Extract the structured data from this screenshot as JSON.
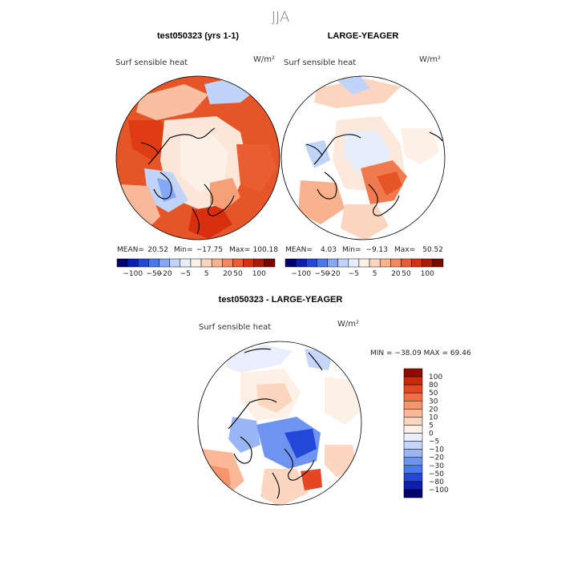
{
  "season": "JJA",
  "colors": {
    "levels_panel": [
      "#00006e",
      "#0b1fb5",
      "#2447d8",
      "#4a78ee",
      "#86a8f4",
      "#c0d3f9",
      "#e6eefc",
      "#fdf0e6",
      "#fcd5bf",
      "#fab18e",
      "#f78760",
      "#ee5a33",
      "#d8300f",
      "#ae1a05",
      "#7a0800"
    ],
    "levels_diff": [
      "#00006e",
      "#0b1fb5",
      "#2447d8",
      "#4a78ee",
      "#6f93f0",
      "#99b5f5",
      "#c6d6fa",
      "#e9effd",
      "#fdf0e6",
      "#fcd6bf",
      "#fbb896",
      "#f8946c",
      "#f26e46",
      "#e44722",
      "#c92a0a",
      "#8e0c00"
    ],
    "land_outline": "#000000",
    "background": "#ffffff"
  },
  "chart_data": [
    {
      "type": "heatmap",
      "name": "model",
      "title": "test050323 (yrs 1-1)",
      "variable": "Surf sensible heat",
      "units": "W/m²",
      "mean_label": "MEAN=",
      "mean": "20.52",
      "min_label": "Min=",
      "min": "−17.75",
      "max_label": "Max=",
      "max": "100.18",
      "colorbar_ticks": [
        "−100",
        "−50",
        "−20",
        "−5",
        "5",
        "20",
        "50",
        "100"
      ]
    },
    {
      "type": "heatmap",
      "name": "obs",
      "title": "LARGE-YEAGER",
      "variable": "Surf sensible heat",
      "units": "W/m²",
      "mean_label": "MEAN=",
      "mean": "4.03",
      "min_label": "Min=",
      "min": "−9.13",
      "max_label": "Max=",
      "max": "50.52",
      "colorbar_ticks": [
        "−100",
        "−50",
        "−20",
        "−5",
        "5",
        "20",
        "50",
        "100"
      ]
    },
    {
      "type": "heatmap",
      "name": "difference",
      "title": "test050323 - LARGE-YEAGER",
      "variable": "Surf sensible heat",
      "units": "W/m²",
      "minmax_text": "MIN = −38.09 MAX =  69.46",
      "colorbar_ticks": [
        "100",
        "80",
        "50",
        "30",
        "20",
        "10",
        "5",
        "0",
        "−5",
        "−10",
        "−20",
        "−30",
        "−50",
        "−80",
        "−100"
      ]
    }
  ]
}
